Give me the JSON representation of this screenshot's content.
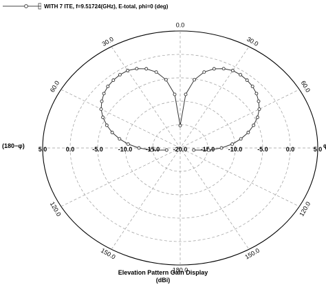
{
  "chart_data": {
    "type": "polar-line",
    "legend_label": "WITH 7 ITE, f=9.51724(GHz), E-total, phi=0 (deg)",
    "title_line1": "Elevation Pattern Gain Display",
    "title_line2": "(dBi)",
    "left_side_label": "(180−φ)",
    "right_side_label": "φ",
    "radial_range_dbi": [
      -20,
      5
    ],
    "radial_tick_labels_left": [
      "5.0",
      "0.0",
      "-5.0",
      "-10.0",
      "-15.0",
      "-20.0"
    ],
    "radial_tick_labels_right": [
      "-15.0",
      "-10.0",
      "-5.0",
      "0.0",
      "5.0"
    ],
    "angle_labels": [
      {
        "deg": 0,
        "text": "0.0"
      },
      {
        "deg": 30,
        "text": "30.0"
      },
      {
        "deg": 60,
        "text": "60.0"
      },
      {
        "deg": 120,
        "text": "120.0"
      },
      {
        "deg": 150,
        "text": "150.0"
      },
      {
        "deg": 180,
        "text": "180.0"
      },
      {
        "deg": 210,
        "text": "150.0"
      },
      {
        "deg": 240,
        "text": "120.0"
      },
      {
        "deg": 300,
        "text": "60.0"
      },
      {
        "deg": 330,
        "text": "30.0"
      }
    ],
    "grid": true,
    "series": [
      {
        "color": "#333333",
        "marker": "circle",
        "theta_deg": [
          0,
          5,
          10,
          15,
          20,
          25,
          30,
          35,
          40,
          45,
          50,
          55,
          60,
          65,
          70,
          75,
          80,
          85,
          90,
          95,
          100,
          260,
          265,
          270,
          275,
          280,
          285,
          290,
          295,
          300,
          305,
          310,
          315,
          320,
          325,
          330,
          335,
          340,
          345,
          350,
          355
        ],
        "gain_dbi": [
          -15.2,
          -8.5,
          -5.2,
          -3.2,
          -2.0,
          -1.3,
          -0.9,
          -0.9,
          -1.1,
          -1.4,
          -1.9,
          -2.6,
          -3.4,
          -4.5,
          -5.8,
          -7.2,
          -8.8,
          -10.5,
          -12.5,
          -14.8,
          -17.5,
          -17.5,
          -14.8,
          -12.5,
          -10.5,
          -8.8,
          -7.2,
          -5.8,
          -4.5,
          -3.4,
          -2.6,
          -1.9,
          -1.4,
          -1.1,
          -0.9,
          -0.9,
          -1.3,
          -2.0,
          -3.2,
          -5.2,
          -8.5
        ]
      }
    ]
  }
}
